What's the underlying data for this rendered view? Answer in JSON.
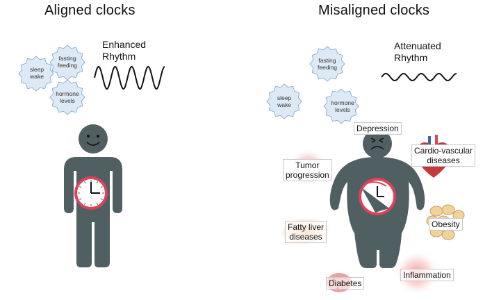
{
  "left_panel": {
    "title": "Aligned clocks",
    "rhythm_label": "Enhanced\nRhythm",
    "gears": [
      "sleep\nwake",
      "fasting\nfeeding",
      "hormone\nlevels"
    ]
  },
  "right_panel": {
    "title": "Misaligned clocks",
    "rhythm_label": "Attenuated\nRhythm",
    "gears": [
      "sleep\nwake",
      "fasting\nfeeding",
      "hormone\nlevels"
    ],
    "diseases": {
      "depression": "Depression",
      "cardio": "Cardio-vascular\ndiseases",
      "tumor": "Tumor\nprogression",
      "obesity": "Obesity",
      "fatty_liver": "Fatty liver\ndiseases",
      "diabetes": "Diabetes",
      "inflammation": "Inflammation"
    }
  },
  "colors": {
    "body": "#505f61",
    "clock_ring": "#e0405a",
    "gear_fill": "#ddeaf6",
    "gear_stroke": "#8fb3d4",
    "glow": "#f28a8a"
  }
}
